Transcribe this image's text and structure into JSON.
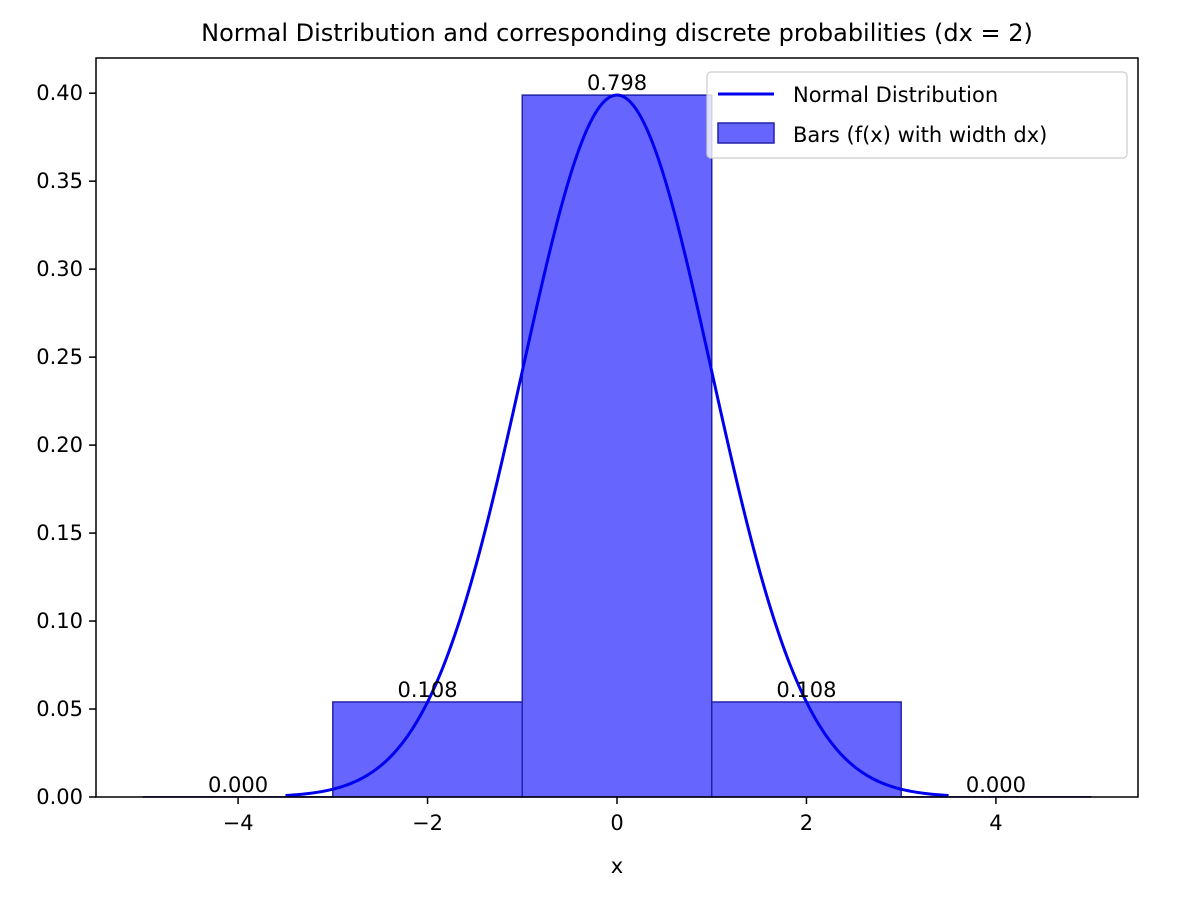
{
  "chart_data": {
    "type": "bar",
    "title": "Normal Distribution and corresponding discrete probabilities  (dx = 2)",
    "xlabel": "x",
    "ylabel": "",
    "xlim": [
      -5.5,
      5.5
    ],
    "ylim": [
      0,
      0.42
    ],
    "x_ticks": [
      -4,
      -2,
      0,
      2,
      4
    ],
    "x_tick_labels": [
      "−4",
      "−2",
      "0",
      "2",
      "4"
    ],
    "y_ticks": [
      0,
      0.05,
      0.1,
      0.15,
      0.2,
      0.25,
      0.3,
      0.35,
      0.4
    ],
    "y_tick_labels": [
      "0.00",
      "0.05",
      "0.10",
      "0.15",
      "0.20",
      "0.25",
      "0.30",
      "0.35",
      "0.40"
    ],
    "grid": false,
    "legend_position": "top-right",
    "legend": [
      {
        "label": "Normal Distribution",
        "kind": "line"
      },
      {
        "label": "Bars (f(x) with width dx)",
        "kind": "patch"
      }
    ],
    "bars": {
      "name": "Bars (f(x) with width dx)",
      "width": 2,
      "x": [
        -4,
        -2,
        0,
        2,
        4
      ],
      "heights": [
        0.0001,
        0.054,
        0.3989,
        0.054,
        0.0001
      ],
      "labels": [
        "0.000",
        "0.108",
        "0.798",
        "0.108",
        "0.000"
      ],
      "fill_color": "#6666ff",
      "edge_color": "#2222aa"
    },
    "curve": {
      "name": "Normal Distribution",
      "mean": 0,
      "sd": 1,
      "x_range": [
        -3.5,
        3.5
      ],
      "color": "#0000ee"
    }
  }
}
